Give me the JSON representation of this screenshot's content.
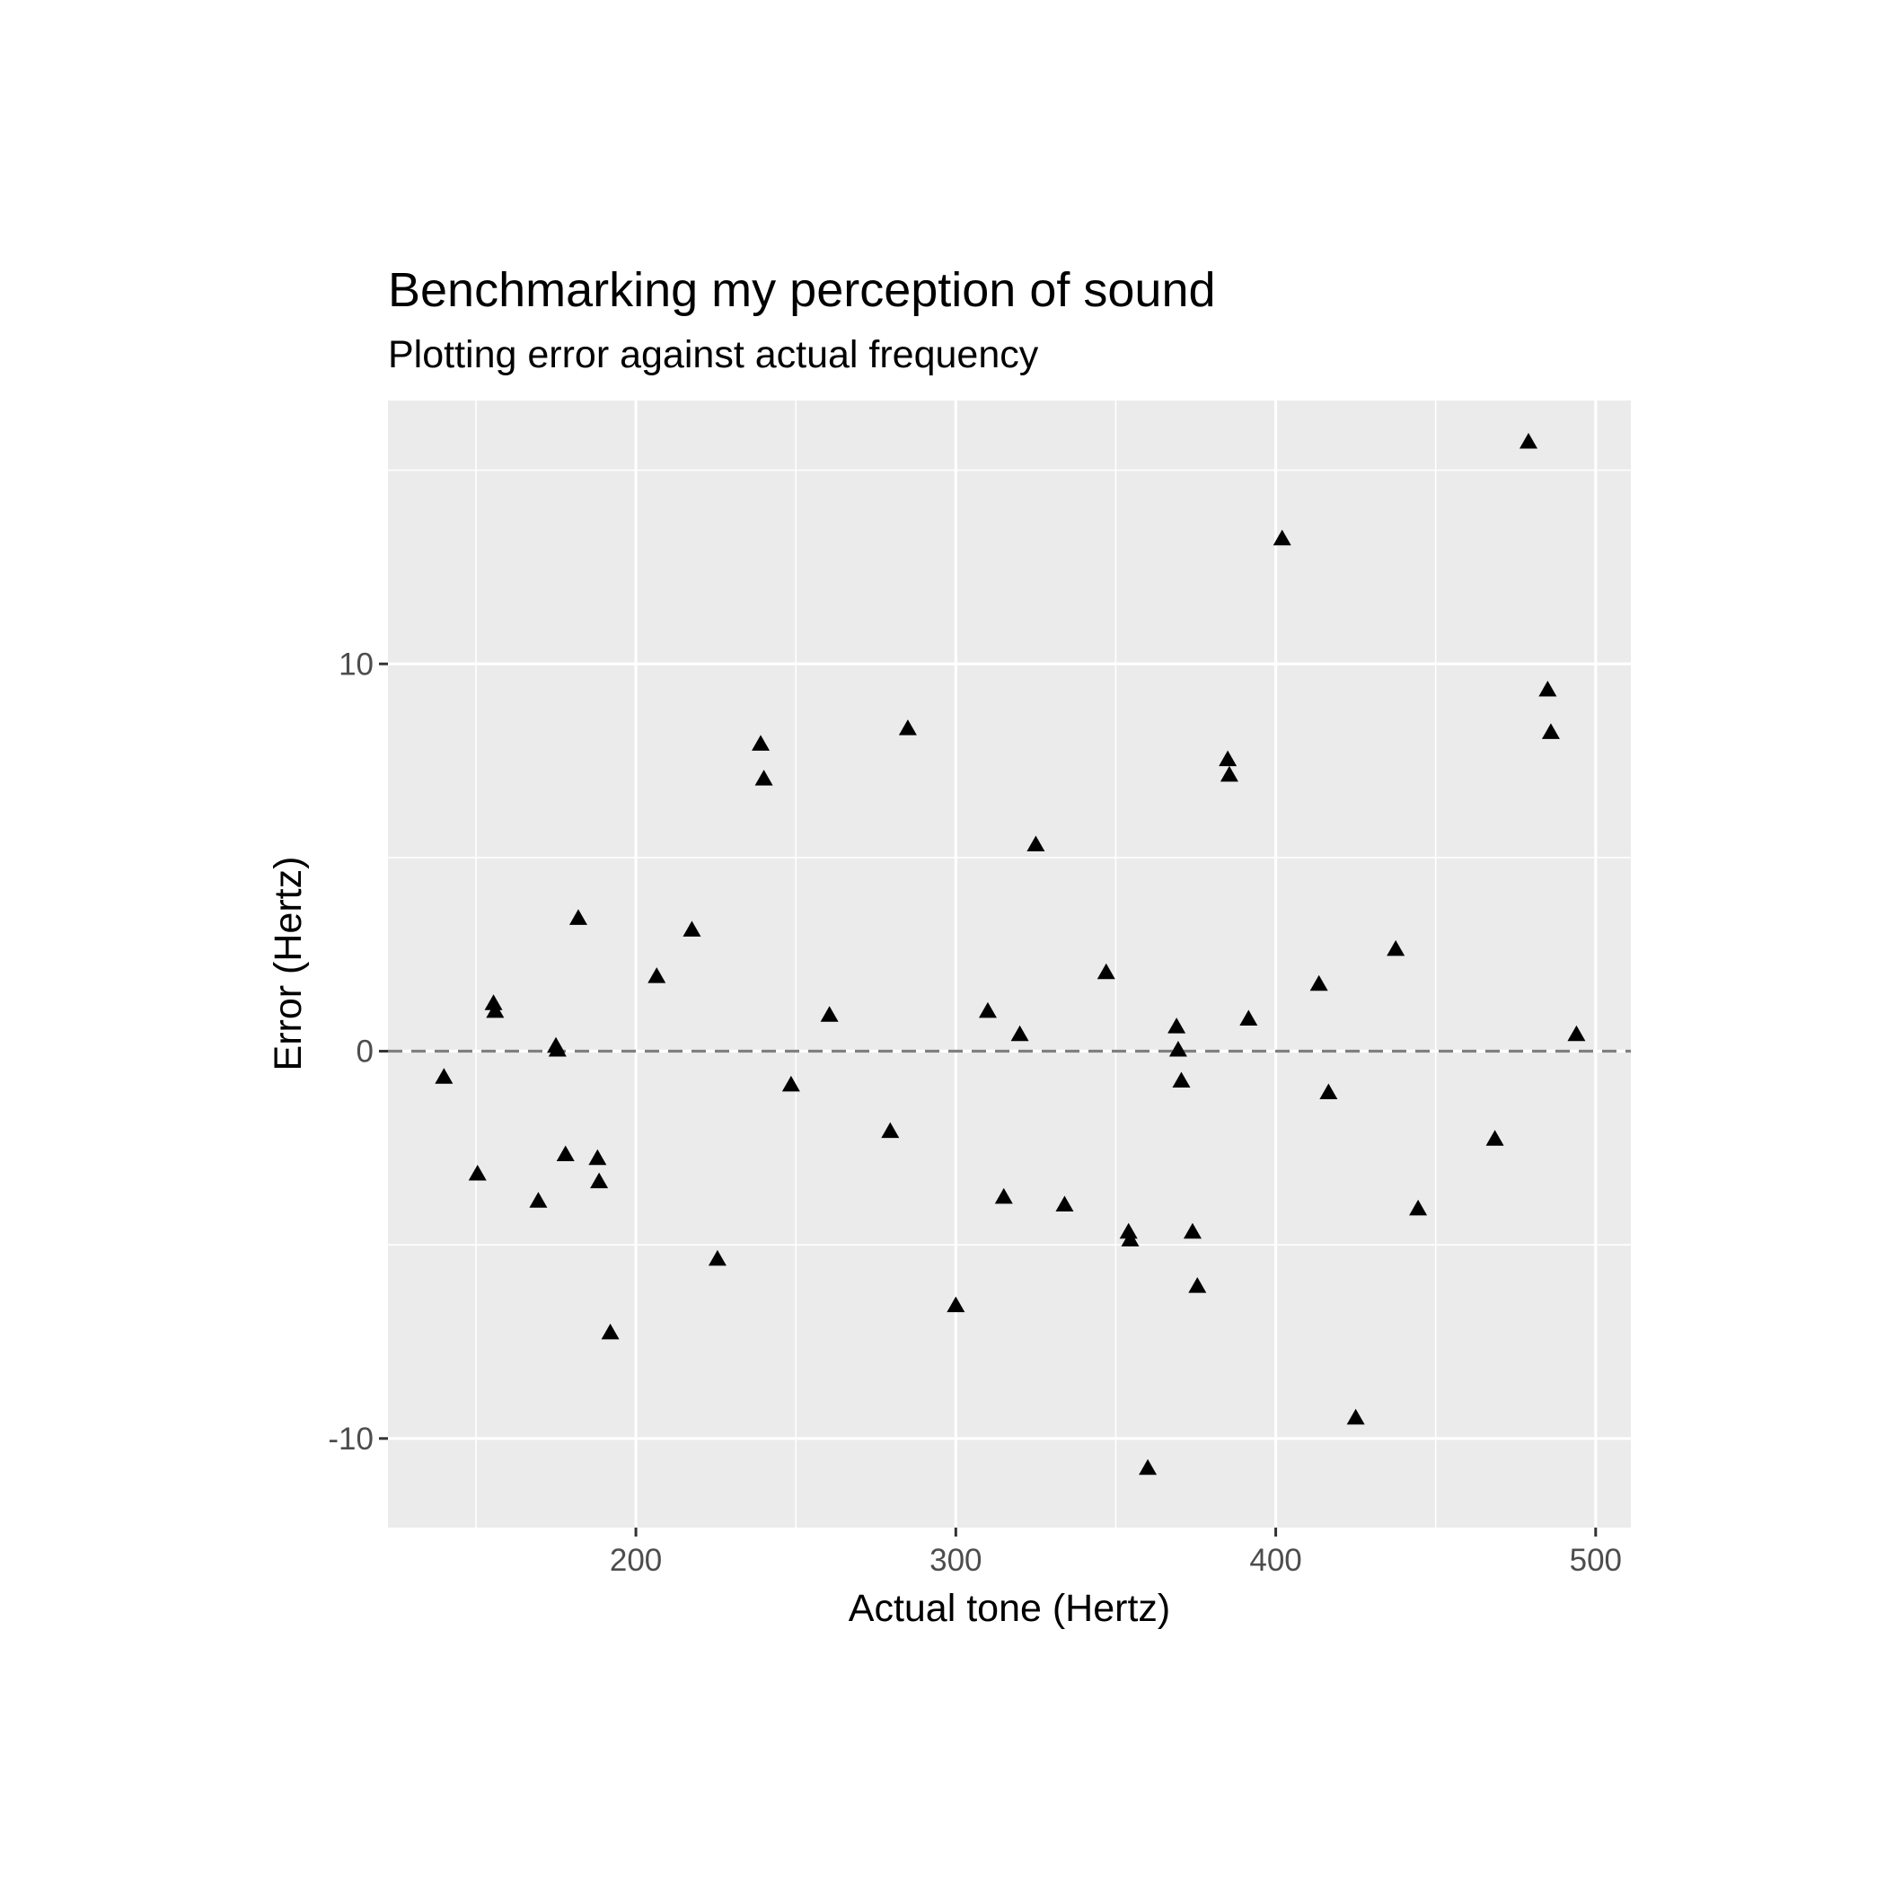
{
  "chart_data": {
    "type": "scatter",
    "title": "Benchmarking my perception of sound",
    "subtitle": "Plotting error against actual frequency",
    "xlabel": "Actual tone (Hertz)",
    "ylabel": "Error (Hertz)",
    "xlim": [
      122.5,
      511
    ],
    "ylim": [
      -12.3,
      16.8
    ],
    "x_ticks": [
      200,
      300,
      400,
      500
    ],
    "x_tick_labels": [
      "200",
      "300",
      "400",
      "500"
    ],
    "y_ticks": [
      -10,
      0,
      10
    ],
    "y_tick_labels": [
      "-10",
      "0",
      "10"
    ],
    "grid": true,
    "panel_background": "#ebebeb",
    "grid_color": "#ffffff",
    "point_color": "#000000",
    "point_shape": "triangle",
    "reference_line": {
      "y": 0,
      "style": "dashed",
      "color": "#808080"
    },
    "points": [
      {
        "x": 140,
        "y": -0.7
      },
      {
        "x": 150.5,
        "y": -3.2
      },
      {
        "x": 155.5,
        "y": 1.2
      },
      {
        "x": 156,
        "y": 1.0
      },
      {
        "x": 169.5,
        "y": -3.9
      },
      {
        "x": 175,
        "y": 0.1
      },
      {
        "x": 175.5,
        "y": 0.0
      },
      {
        "x": 178,
        "y": -2.7
      },
      {
        "x": 182,
        "y": 3.4
      },
      {
        "x": 188,
        "y": -2.8
      },
      {
        "x": 188.5,
        "y": -3.4
      },
      {
        "x": 192,
        "y": -7.3
      },
      {
        "x": 206.5,
        "y": 1.9
      },
      {
        "x": 217.5,
        "y": 3.1
      },
      {
        "x": 225.5,
        "y": -5.4
      },
      {
        "x": 239,
        "y": 7.9
      },
      {
        "x": 240,
        "y": 7.0
      },
      {
        "x": 248.5,
        "y": -0.9
      },
      {
        "x": 260.5,
        "y": 0.9
      },
      {
        "x": 279.5,
        "y": -2.1
      },
      {
        "x": 285,
        "y": 8.3
      },
      {
        "x": 300,
        "y": -6.6
      },
      {
        "x": 310,
        "y": 1.0
      },
      {
        "x": 315,
        "y": -3.8
      },
      {
        "x": 320,
        "y": 0.4
      },
      {
        "x": 325,
        "y": 5.3
      },
      {
        "x": 334,
        "y": -4.0
      },
      {
        "x": 347,
        "y": 2.0
      },
      {
        "x": 354,
        "y": -4.7
      },
      {
        "x": 354.5,
        "y": -4.9
      },
      {
        "x": 360,
        "y": -10.8
      },
      {
        "x": 369,
        "y": 0.6
      },
      {
        "x": 369.5,
        "y": 0.0
      },
      {
        "x": 370.5,
        "y": -0.8
      },
      {
        "x": 374,
        "y": -4.7
      },
      {
        "x": 375.5,
        "y": -6.1
      },
      {
        "x": 385,
        "y": 7.5
      },
      {
        "x": 385.5,
        "y": 7.1
      },
      {
        "x": 391.5,
        "y": 0.8
      },
      {
        "x": 402,
        "y": 13.2
      },
      {
        "x": 413.5,
        "y": 1.7
      },
      {
        "x": 416.5,
        "y": -1.1
      },
      {
        "x": 425,
        "y": -9.5
      },
      {
        "x": 437.5,
        "y": 2.6
      },
      {
        "x": 444.5,
        "y": -4.1
      },
      {
        "x": 468.5,
        "y": -2.3
      },
      {
        "x": 479,
        "y": 15.7
      },
      {
        "x": 485,
        "y": 9.3
      },
      {
        "x": 486,
        "y": 8.2
      },
      {
        "x": 494,
        "y": 0.4
      }
    ]
  }
}
